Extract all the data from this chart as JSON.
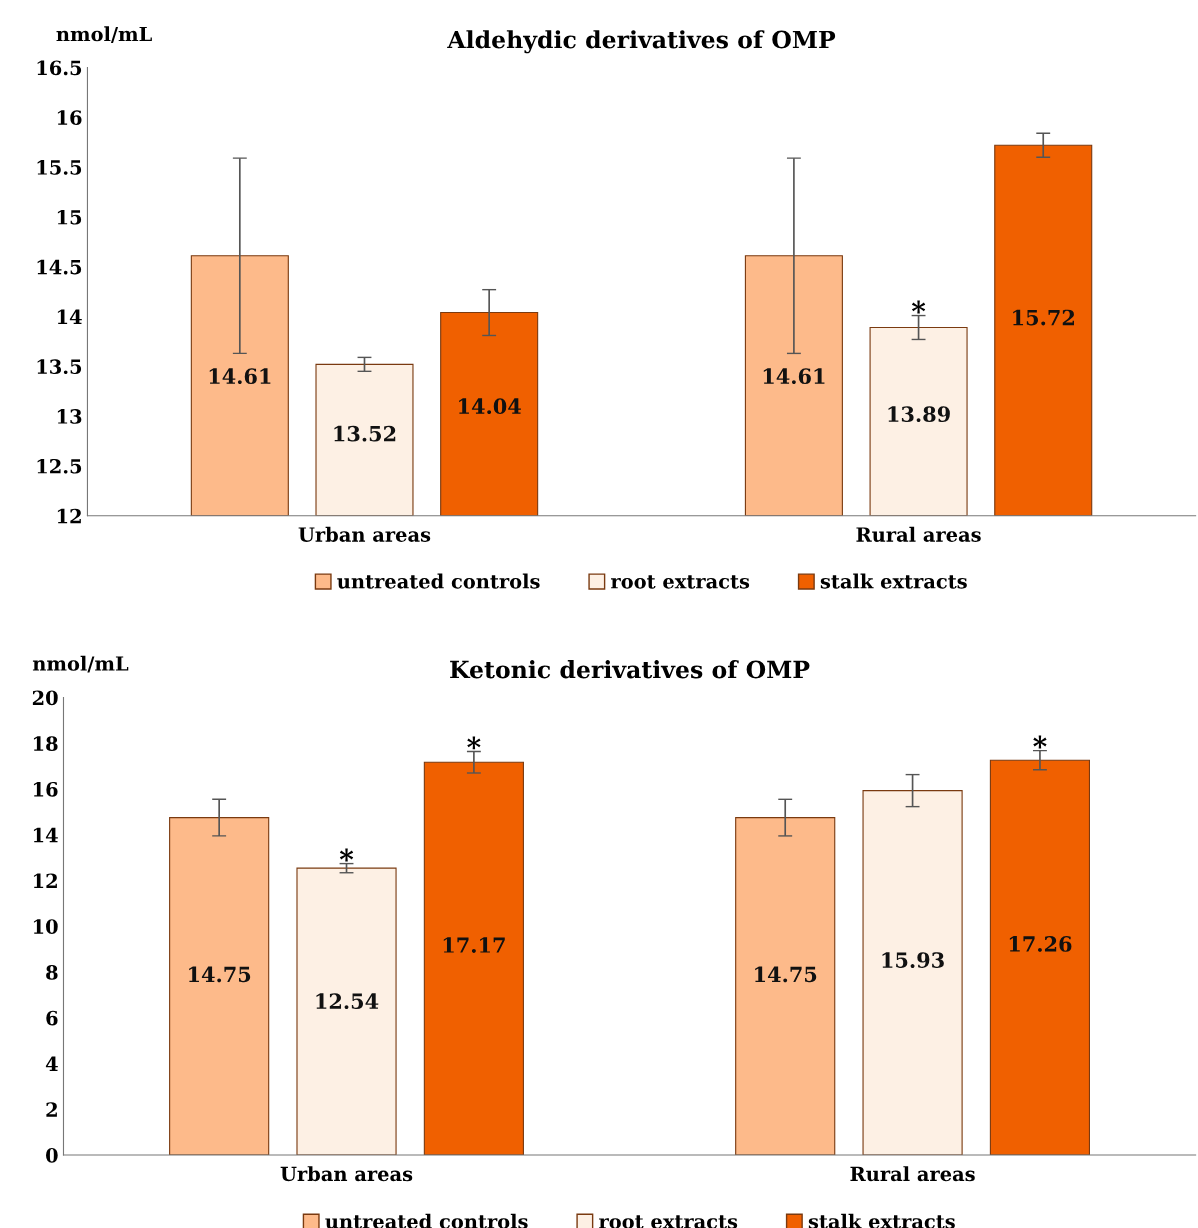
{
  "chart_data": [
    {
      "type": "bar",
      "title": "Aldehydic derivatives of OMP",
      "ylabel": "nmol/mL",
      "categories": [
        "Urban areas",
        "Rural areas"
      ],
      "series": [
        {
          "name": "untreated controls",
          "color": "#fdba8a",
          "values": [
            14.61,
            14.61
          ],
          "errors": [
            0.98,
            0.98
          ]
        },
        {
          "name": "root extracts",
          "color": "#fdf0e4",
          "values": [
            13.52,
            13.89
          ],
          "errors": [
            0.07,
            0.12
          ]
        },
        {
          "name": "stalk extracts",
          "color": "#f06000",
          "values": [
            14.04,
            15.72
          ],
          "errors": [
            0.23,
            0.12
          ]
        }
      ],
      "ylim": [
        12,
        16.5
      ],
      "yticks": [
        12,
        12.5,
        13,
        13.5,
        14,
        14.5,
        15,
        15.5,
        16,
        16.5
      ],
      "grid": false,
      "legend": "bottom",
      "data_labels": true,
      "annotations": [
        {
          "text": "*",
          "x": "Rural areas",
          "y": 14.01
        }
      ]
    },
    {
      "type": "bar",
      "title": "Ketonic derivatives of OMP",
      "ylabel": "nmol/mL",
      "categories": [
        "Urban areas",
        "Rural areas"
      ],
      "series": [
        {
          "name": "untreated controls",
          "color": "#fdba8a",
          "values": [
            14.75,
            14.75
          ],
          "errors": [
            0.8,
            0.8
          ]
        },
        {
          "name": "root extracts",
          "color": "#fdf0e4",
          "values": [
            12.54,
            15.93
          ],
          "errors": [
            0.2,
            0.7
          ]
        },
        {
          "name": "stalk extracts",
          "color": "#f06000",
          "values": [
            17.17,
            17.26
          ],
          "errors": [
            0.47,
            0.42
          ]
        }
      ],
      "ylim": [
        0,
        20
      ],
      "yticks": [
        0,
        2,
        4,
        6,
        8,
        10,
        12,
        14,
        16,
        18,
        20
      ],
      "grid": false,
      "legend": "bottom",
      "data_labels": true,
      "annotations": [
        {
          "text": "*",
          "x": "Urban areas",
          "y": 12.74
        },
        "*",
        "*"
      ]
    }
  ]
}
